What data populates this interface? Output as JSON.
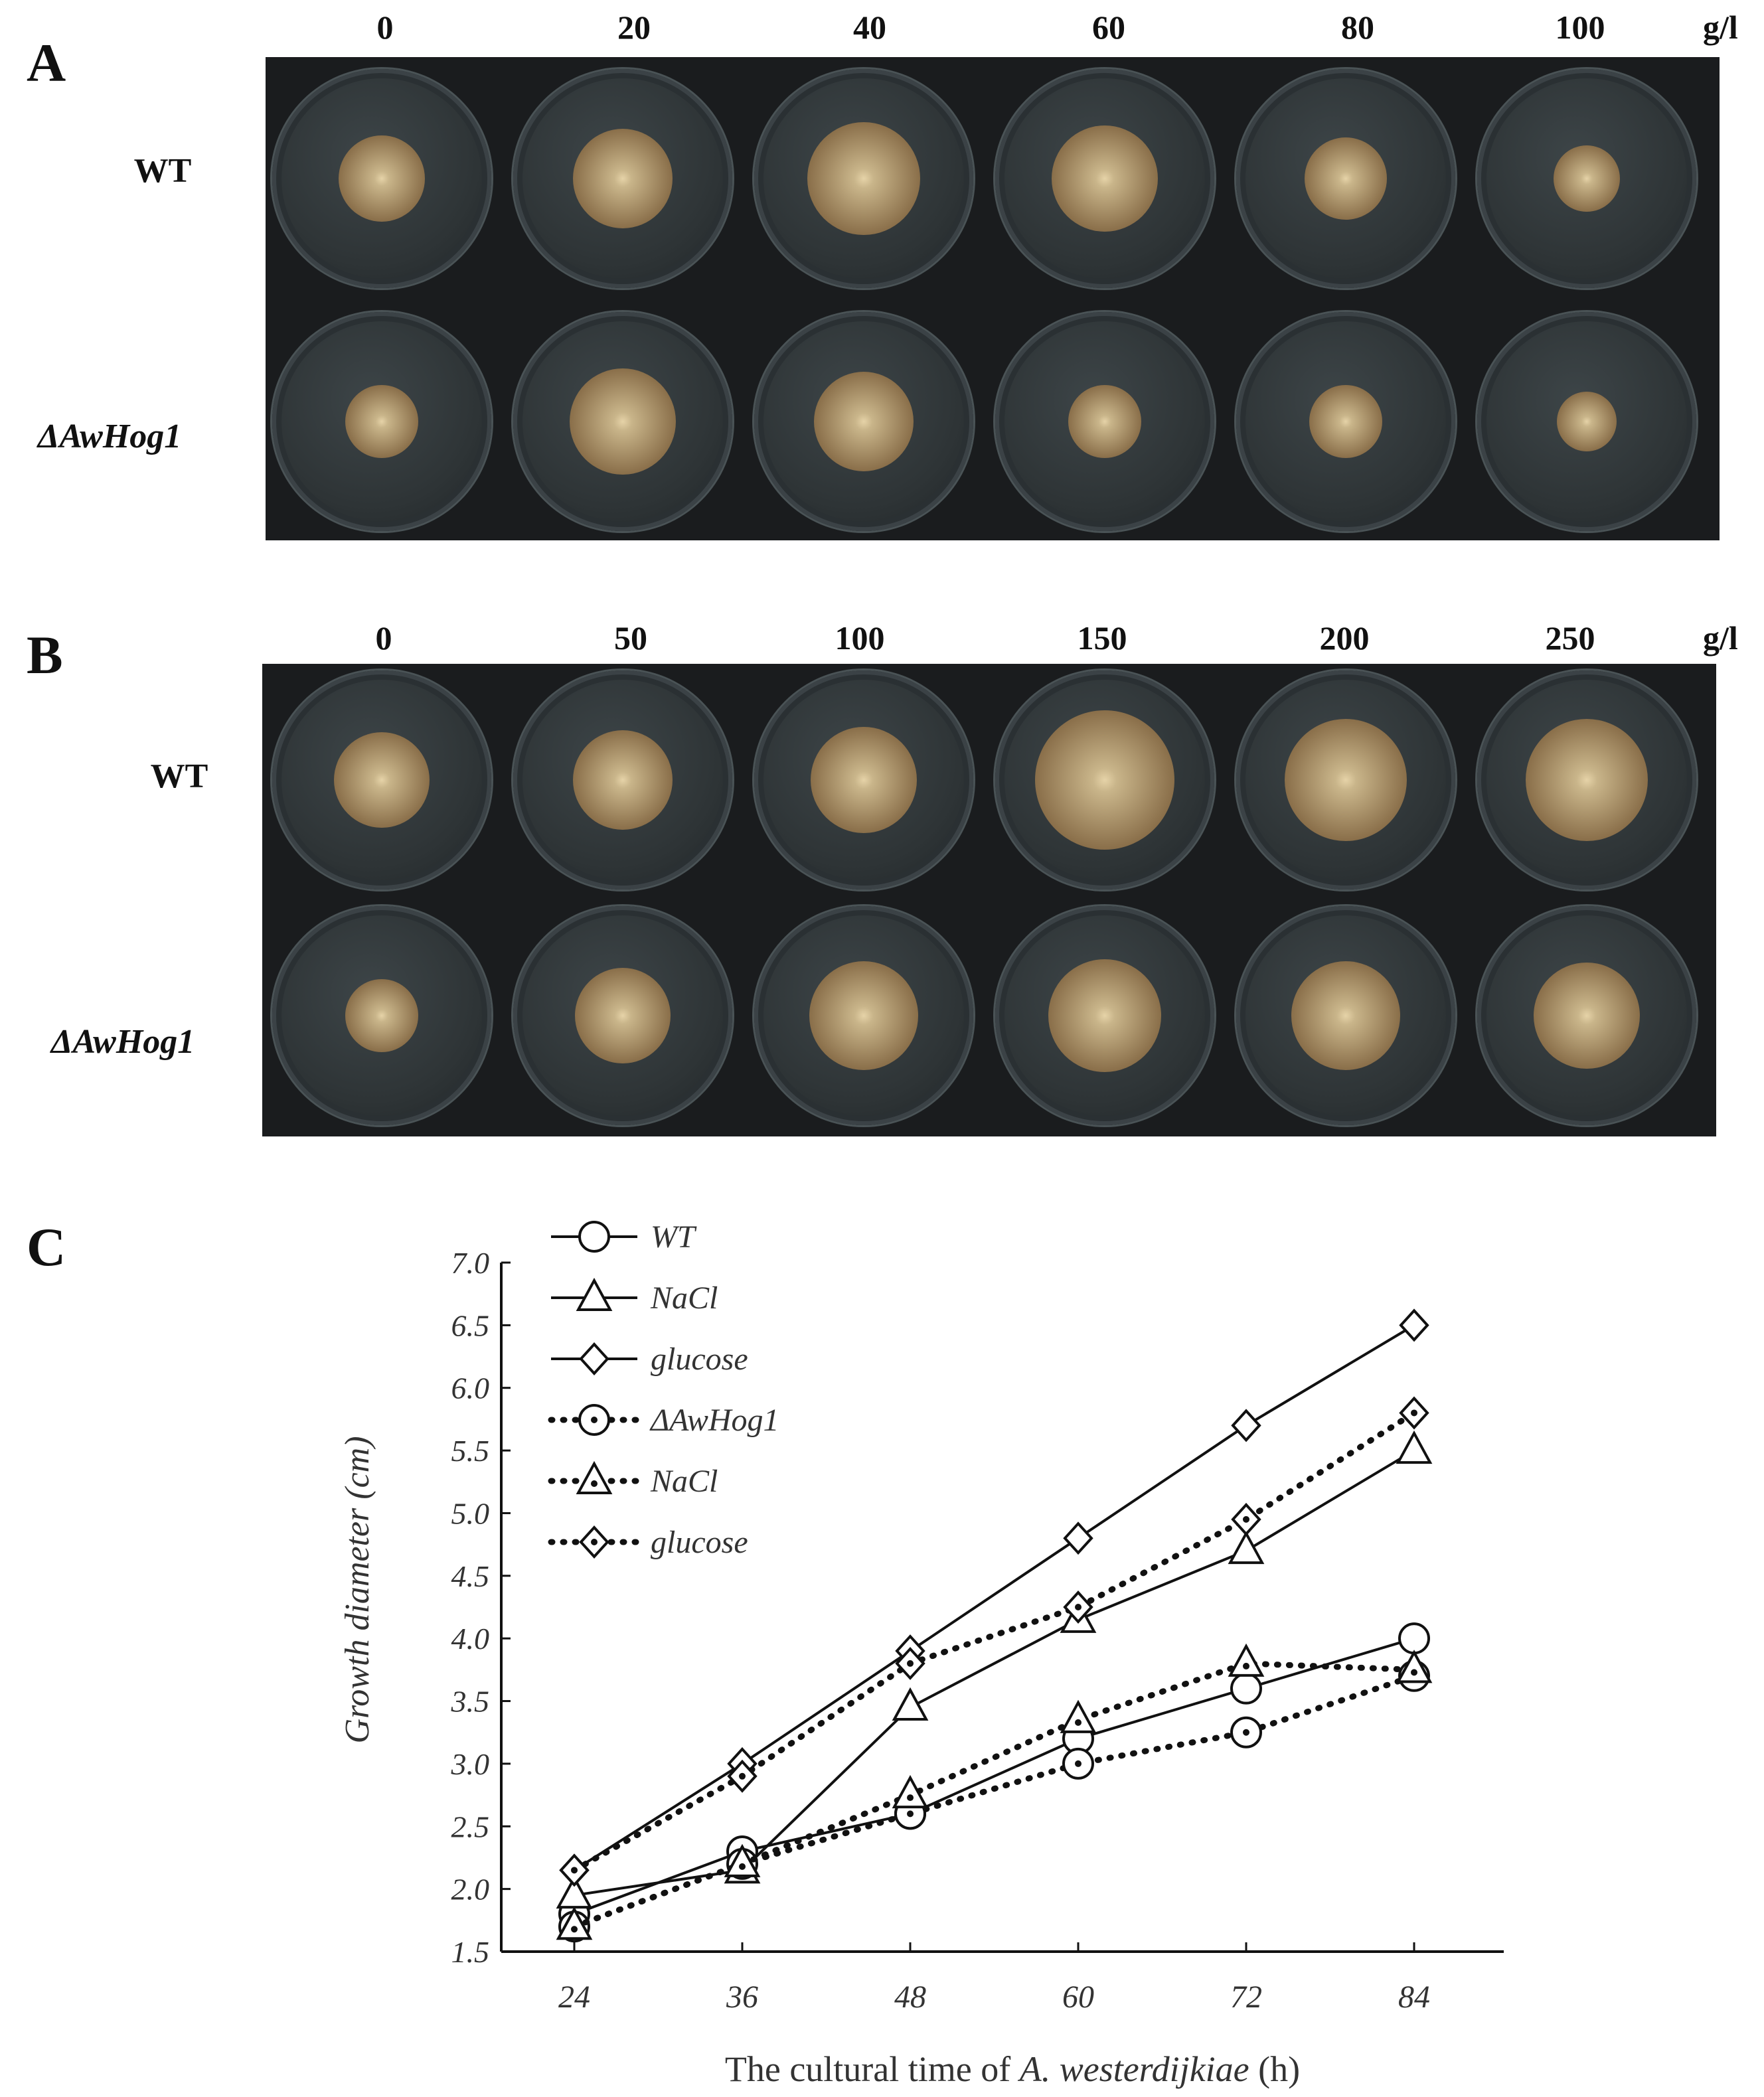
{
  "panels": {
    "A": {
      "letter": "A",
      "unit": "g/l",
      "concentrations": [
        "0",
        "20",
        "40",
        "60",
        "80",
        "100"
      ],
      "rows": [
        "WT",
        "ΔAwHog1"
      ]
    },
    "B": {
      "letter": "B",
      "unit": "g/l",
      "concentrations": [
        "0",
        "50",
        "100",
        "150",
        "200",
        "250"
      ],
      "rows": [
        "WT",
        "ΔAwHog1"
      ]
    },
    "C": {
      "letter": "C"
    }
  },
  "colors": {
    "background": "#1a1c1e",
    "plate": "#2e3436",
    "colony_light": "#c9b58a",
    "colony_dark": "#8a6f4a",
    "line": "#111111"
  },
  "chart_data": {
    "type": "line",
    "xlabel": "The cultural time of A. westerdijkiae (h)",
    "ylabel": "Growth diameter (cm)",
    "x": [
      24,
      36,
      48,
      60,
      72,
      84
    ],
    "x_ticks": [
      "24",
      "36",
      "48",
      "60",
      "72",
      "84"
    ],
    "y_ticks": [
      "1.5",
      "2.0",
      "2.5",
      "3.0",
      "3.5",
      "4.0",
      "4.5",
      "5.0",
      "5.5",
      "6.0",
      "6.5",
      "7.0"
    ],
    "ylim": [
      1.5,
      7.0
    ],
    "legend_position": "top-left",
    "series": [
      {
        "name": "WT",
        "marker": "circle",
        "style": "solid",
        "values": [
          1.8,
          2.3,
          2.6,
          3.2,
          3.6,
          4.0
        ]
      },
      {
        "name": "NaCl",
        "marker": "triangle",
        "style": "solid",
        "values": [
          1.95,
          2.15,
          3.45,
          4.15,
          4.7,
          5.5
        ]
      },
      {
        "name": "glucose",
        "marker": "diamond",
        "style": "solid",
        "values": [
          2.15,
          3.0,
          3.9,
          4.8,
          5.7,
          6.5
        ]
      },
      {
        "name": "ΔAwHog1",
        "marker": "circle-dot",
        "style": "dotted",
        "values": [
          1.7,
          2.2,
          2.6,
          3.0,
          3.25,
          3.7
        ]
      },
      {
        "name": "NaCl",
        "marker": "triangle-dot",
        "style": "dotted",
        "values": [
          1.7,
          2.2,
          2.75,
          3.35,
          3.8,
          3.75
        ]
      },
      {
        "name": "glucose",
        "marker": "diamond-dot",
        "style": "dotted",
        "values": [
          2.15,
          2.9,
          3.8,
          4.25,
          4.95,
          5.8
        ]
      }
    ]
  }
}
